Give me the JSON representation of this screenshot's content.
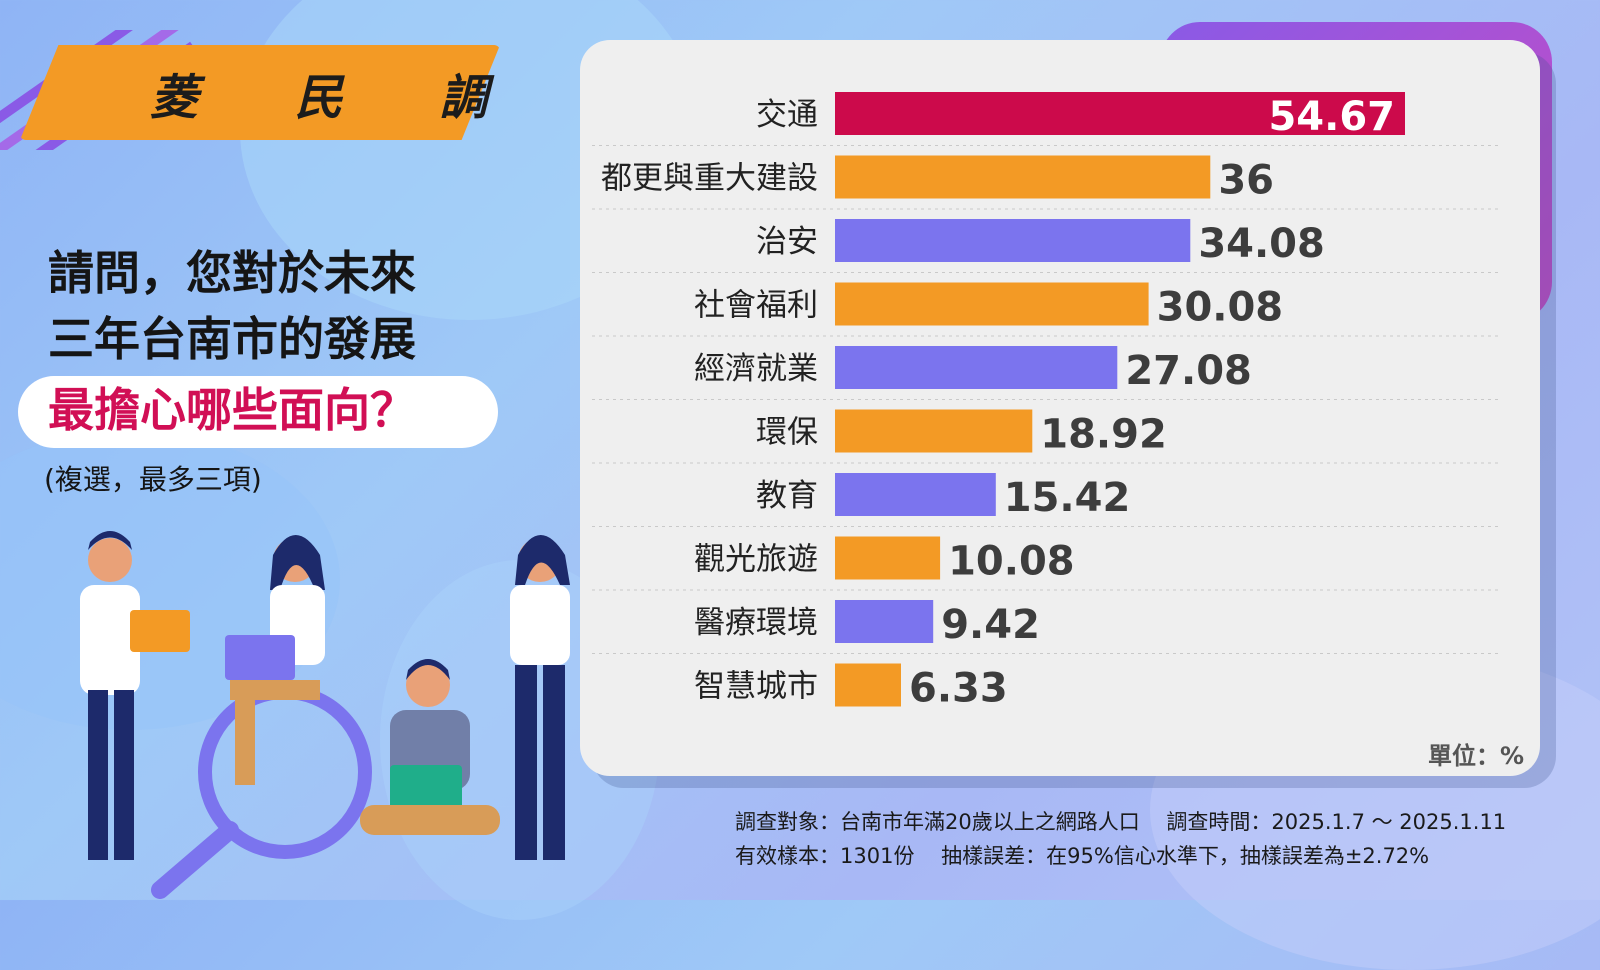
{
  "brand": {
    "name": "菱 民 調"
  },
  "question": {
    "line1": "請問，您對於未來",
    "line2": "三年台南市的發展",
    "highlight": "最擔心哪些面向？",
    "note": "(複選，最多三項)"
  },
  "chart_data": {
    "type": "bar",
    "orientation": "horizontal",
    "categories": [
      "交通",
      "都更與重大建設",
      "治安",
      "社會福利",
      "經濟就業",
      "環保",
      "教育",
      "觀光旅遊",
      "醫療環境",
      "智慧城市"
    ],
    "values": [
      54.67,
      36,
      34.08,
      30.08,
      27.08,
      18.92,
      15.42,
      10.08,
      9.42,
      6.33
    ],
    "value_labels": [
      "54.67",
      "36",
      "34.08",
      "30.08",
      "27.08",
      "18.92",
      "15.42",
      "10.08",
      "9.42",
      "6.33"
    ],
    "bar_colors": [
      "#cc0a4b",
      "#f39a25",
      "#7b74ee",
      "#f39a25",
      "#7b74ee",
      "#f39a25",
      "#7b74ee",
      "#f39a25",
      "#7b74ee",
      "#f39a25"
    ],
    "xlim": [
      0,
      60
    ],
    "grid": false,
    "unit": "單位：%"
  },
  "footnote": {
    "line1": "調查對象：台南市年滿20歲以上之網路人口    調查時間：2025.1.7 ～ 2025.1.11",
    "line2": "有效樣本：1301份    抽樣誤差：在95%信心水準下，抽樣誤差為±2.72%"
  },
  "colors": {
    "brand_orange": "#f39a25",
    "highlight_red": "#d10f55",
    "bar_purple": "#7b74ee",
    "bar_red": "#cc0a4b"
  }
}
